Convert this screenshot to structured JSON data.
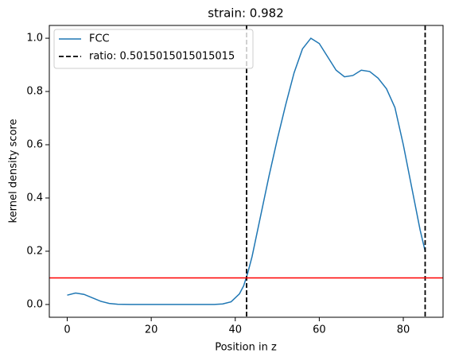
{
  "chart_data": {
    "type": "line",
    "title": "strain: 0.982",
    "x_label": "Position in z",
    "y_label": "kernel density score",
    "x": [
      0,
      2,
      4,
      6,
      8,
      10,
      12,
      15,
      20,
      25,
      30,
      35,
      37,
      39,
      41,
      42,
      43,
      44,
      46,
      48,
      50,
      52,
      54,
      56,
      58,
      60,
      62,
      64,
      66,
      68,
      70,
      72,
      74,
      76,
      78,
      80,
      82,
      84,
      85.2
    ],
    "series": [
      {
        "name": "FCC",
        "color": "#1f77b4",
        "values": [
          0.035,
          0.043,
          0.038,
          0.025,
          0.012,
          0.004,
          0.001,
          0.0,
          0.0,
          0.0,
          0.0,
          0.0,
          0.002,
          0.01,
          0.04,
          0.07,
          0.12,
          0.18,
          0.33,
          0.48,
          0.62,
          0.75,
          0.87,
          0.96,
          1.0,
          0.98,
          0.93,
          0.88,
          0.855,
          0.86,
          0.88,
          0.875,
          0.85,
          0.81,
          0.74,
          0.6,
          0.44,
          0.28,
          0.2
        ]
      }
    ],
    "vlines": {
      "name": "ratio: 0.5015015015015015",
      "color": "#000000",
      "x": [
        42.7,
        85.2
      ]
    },
    "hline": {
      "y": 0.1,
      "color": "#ff0000"
    },
    "xlim": [
      -4.26,
      89.46
    ],
    "ylim": [
      -0.048,
      1.048
    ],
    "xticks": [
      0,
      20,
      40,
      60,
      80
    ],
    "yticks": [
      {
        "value": 0,
        "label": "0.0"
      },
      {
        "value": 0.2,
        "label": "0.2"
      },
      {
        "value": 0.4,
        "label": "0.4"
      },
      {
        "value": 0.6,
        "label": "0.6"
      },
      {
        "value": 0.8,
        "label": "0.8"
      },
      {
        "value": 1.0,
        "label": "1.0"
      }
    ],
    "legend": "upper left"
  }
}
